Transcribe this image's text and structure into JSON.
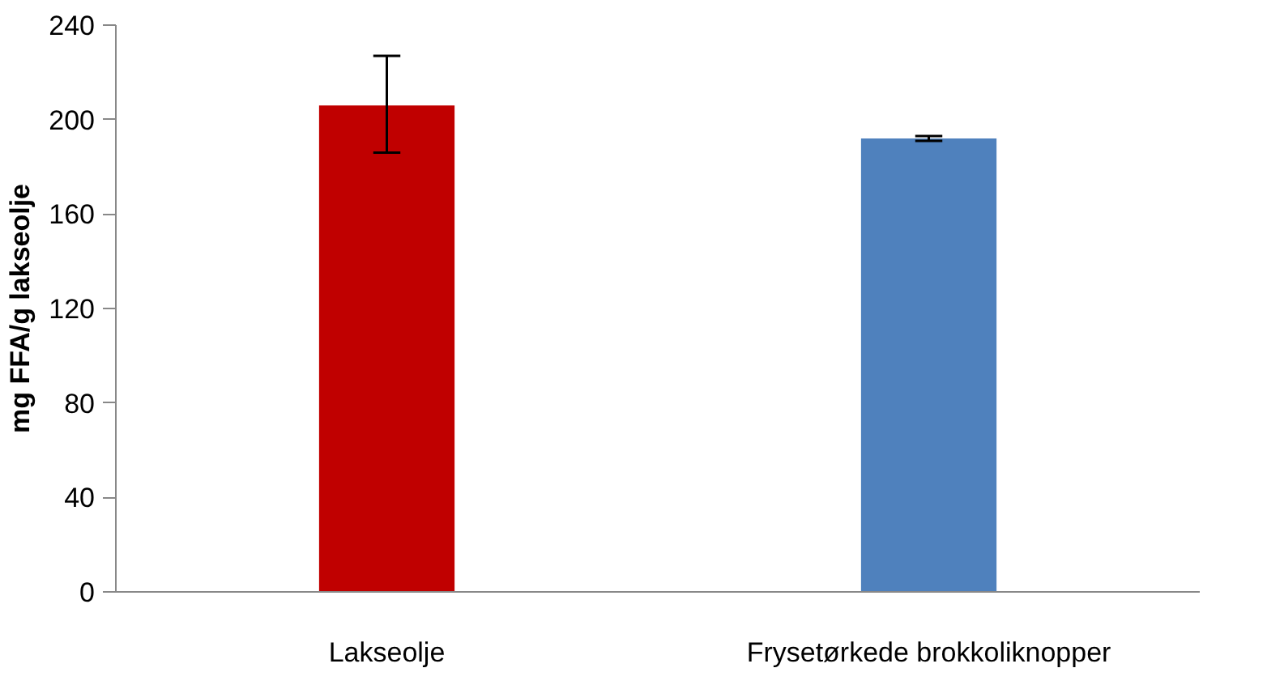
{
  "chart_data": {
    "type": "bar",
    "ylabel": "mg FFA/g lakseolje",
    "categories": [
      "Lakseolje",
      "Frysetørkede brokkoliknopper"
    ],
    "values": [
      206,
      192
    ],
    "colors": [
      "#c00000",
      "#4f81bd"
    ],
    "errors": [
      [
        186,
        227
      ],
      [
        191,
        193
      ]
    ],
    "ylim": [
      0,
      240
    ],
    "yticks": [
      0,
      40,
      80,
      120,
      160,
      200,
      240
    ],
    "grid": false
  }
}
